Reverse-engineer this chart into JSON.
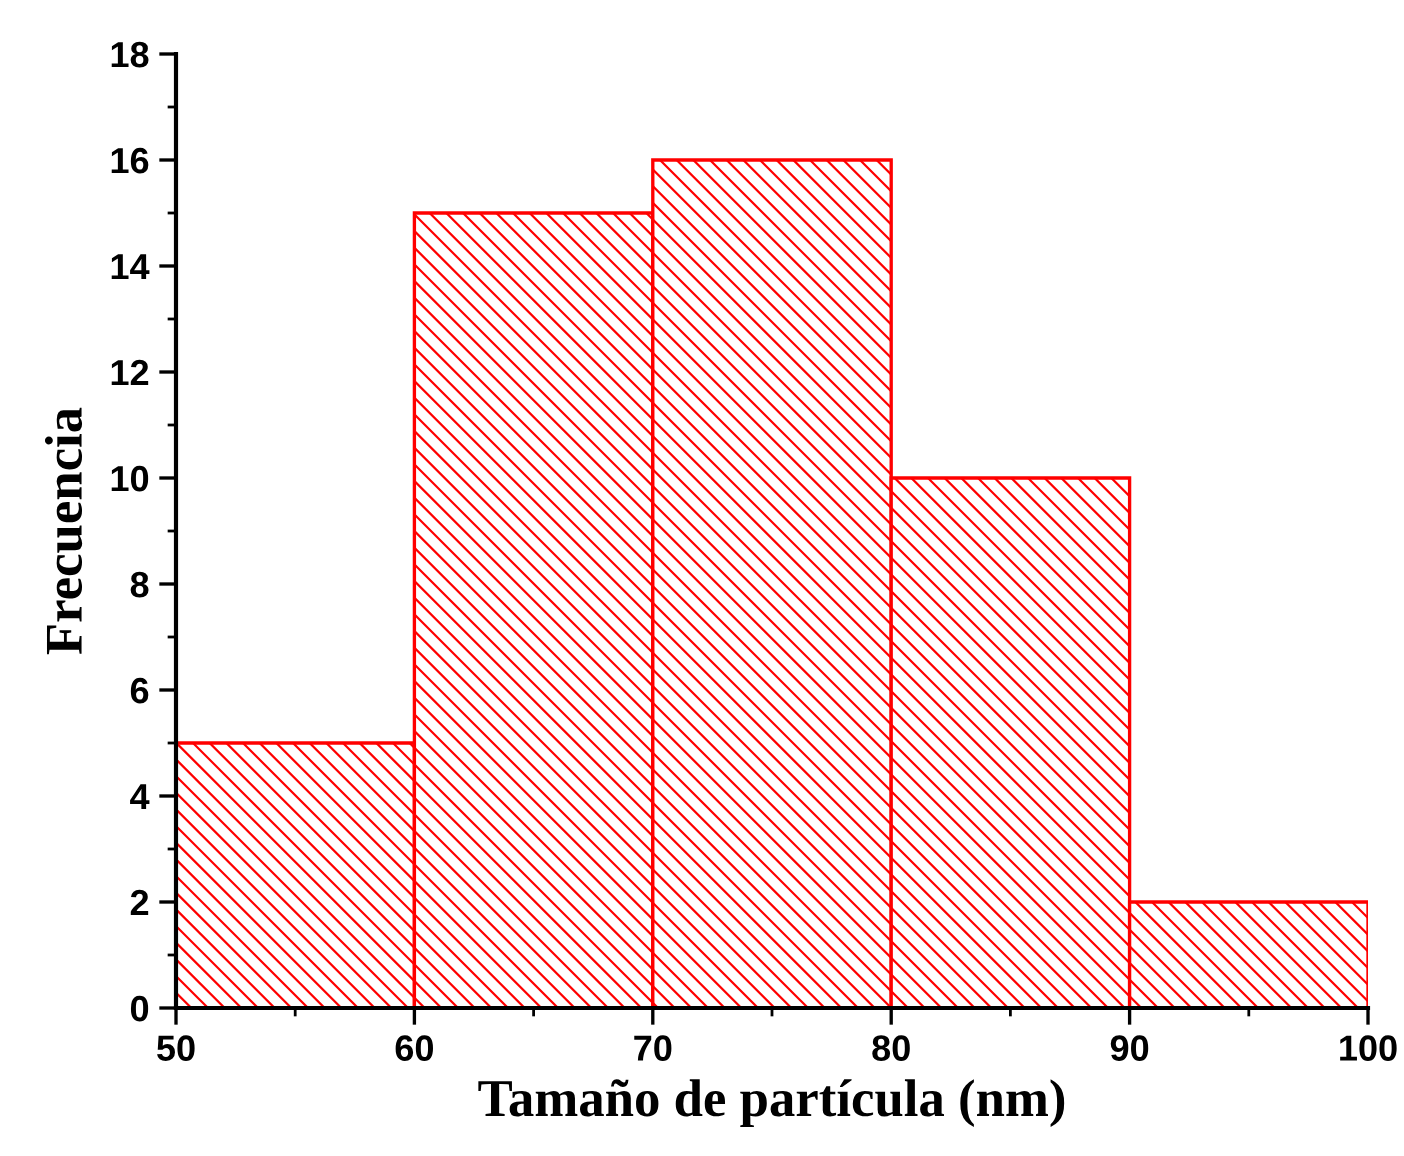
{
  "chart_data": {
    "type": "histogram",
    "xlabel": "Tamaño de partícula (nm)",
    "ylabel": "Frecuencia",
    "bins": [
      50,
      60,
      70,
      80,
      90,
      100
    ],
    "values": [
      5,
      15,
      16,
      10,
      2
    ],
    "color": "#ff0000",
    "xlim": [
      50,
      100
    ],
    "xticks": [
      50,
      60,
      70,
      80,
      90,
      100
    ],
    "ylim": [
      0,
      18
    ],
    "yticks": [
      0,
      2,
      4,
      6,
      8,
      10,
      12,
      14,
      16,
      18
    ],
    "grid": false
  }
}
